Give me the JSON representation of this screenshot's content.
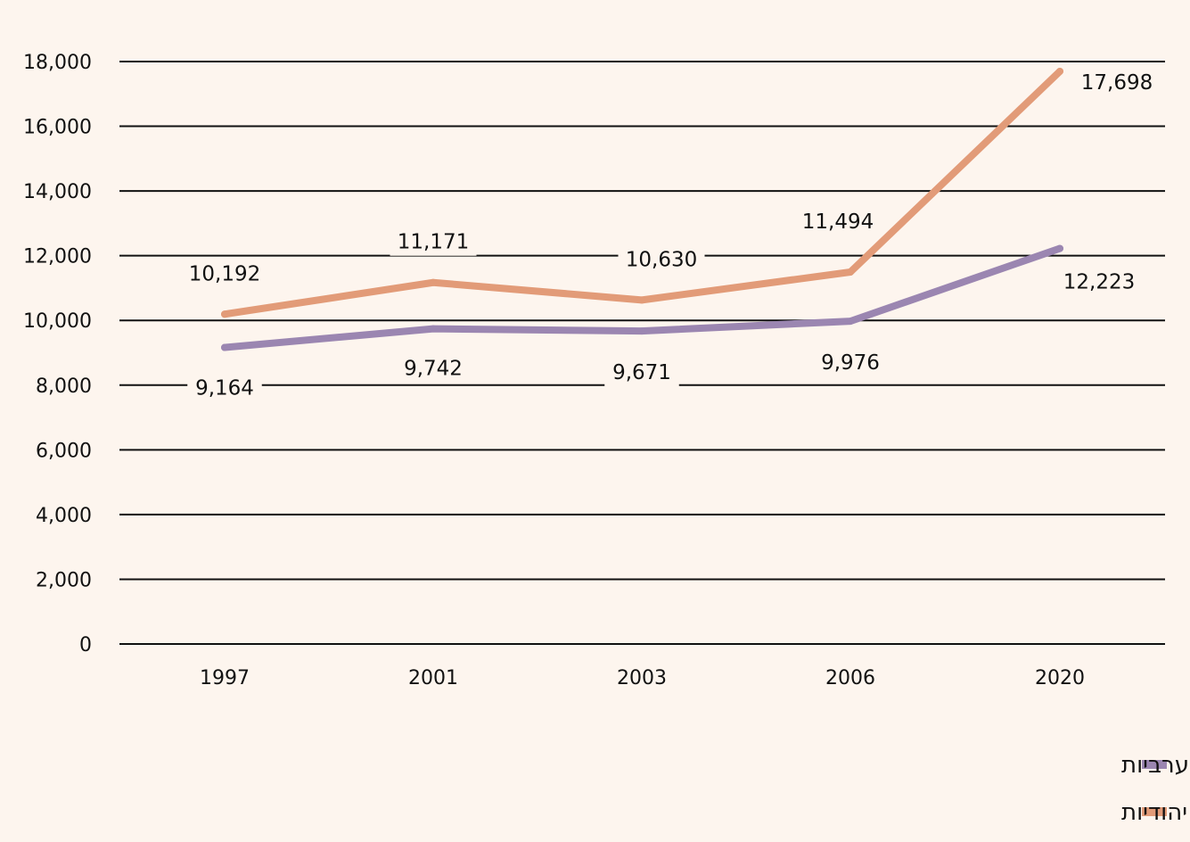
{
  "chart_data": {
    "type": "line",
    "title": "",
    "xlabel": "",
    "ylabel": "",
    "categories": [
      "1997",
      "2001",
      "2003",
      "2006",
      "2020"
    ],
    "ylim": [
      0,
      18000
    ],
    "yticks": [
      0,
      2000,
      4000,
      6000,
      8000,
      10000,
      12000,
      14000,
      16000,
      18000
    ],
    "ytick_labels": [
      "0",
      "2,000",
      "4,000",
      "6,000",
      "8,000",
      "10,000",
      "12,000",
      "14,000",
      "16,000",
      "18,000"
    ],
    "grid": true,
    "legend_position": "bottom-right",
    "series": [
      {
        "name": "משפחות ערביות",
        "color": "#9b86b1",
        "values": [
          9164,
          9742,
          9671,
          9976,
          12223
        ],
        "labels": [
          "9,164",
          "9,742",
          "9,671",
          "9,976",
          "12,223"
        ]
      },
      {
        "name": "משפחות יהודיות",
        "color": "#e29b78",
        "values": [
          10192,
          11171,
          10630,
          11494,
          17698
        ],
        "labels": [
          "10,192",
          "11,171",
          "10,630",
          "11,494",
          "17,698"
        ]
      }
    ]
  }
}
